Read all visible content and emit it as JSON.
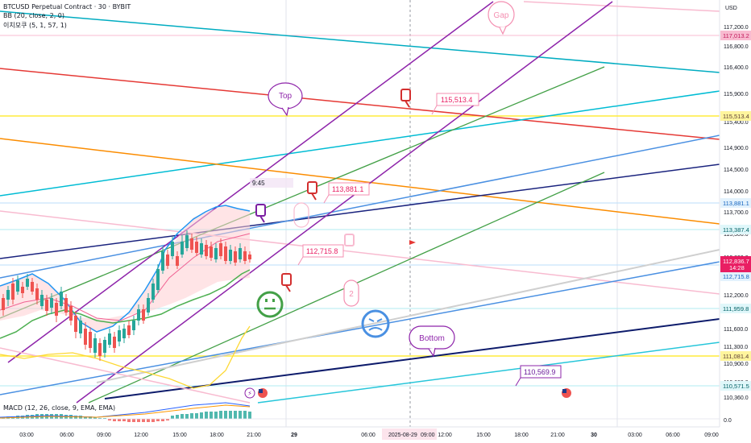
{
  "header": {
    "title": "BTCUSD Perpetual Contract · 30 · BYBIT",
    "indicator_bb": "BB (20, close, 2, 0)",
    "indicator_ichimoku": "이치모쿠 (5, 1, 57, 1)",
    "indicator_macd": "MACD (12, 26, close, 9, EMA, EMA)"
  },
  "axis": {
    "currency": "USD",
    "ticks": [
      "117,200.0",
      "116,800.0",
      "116,400.0",
      "115,900.0",
      "115,400.0",
      "114,900.0",
      "114,500.0",
      "114,000.0",
      "113,700.0",
      "113,300.0",
      "112,800.0",
      "112,200.0",
      "111,600.0",
      "111,300.0",
      "110,900.0",
      "110,660.0",
      "110,360.0",
      "0.0"
    ],
    "highlighted": [
      {
        "label": "117,013.2",
        "color": "#f8bbd0",
        "text_color": "#c2185b"
      },
      {
        "label": "115,513.4",
        "color": "#fff59d",
        "text_color": "#5d4037"
      },
      {
        "label": "113,881.1",
        "color": "#e3f2fd",
        "text_color": "#1565c0"
      },
      {
        "label": "113,387.4",
        "color": "#e0f7fa",
        "text_color": "#006064"
      },
      {
        "label": "112,715.8",
        "color": "#e3f2fd",
        "text_color": "#1565c0"
      },
      {
        "label": "111,959.8",
        "color": "#e0f7fa",
        "text_color": "#006064"
      },
      {
        "label": "111,081.4",
        "color": "#fff59d",
        "text_color": "#5d4037"
      },
      {
        "label": "110,571.5",
        "color": "#e0f7fa",
        "text_color": "#006064"
      }
    ],
    "current_price": "112,836.7",
    "countdown": "14:28",
    "current_color": "#e91e63"
  },
  "time_axis": {
    "labels": [
      "03:00",
      "06:00",
      "09:00",
      "12:00",
      "15:00",
      "18:00",
      "21:00",
      "29",
      "06:00",
      "09:00",
      "12:00",
      "15:00",
      "18:00",
      "21:00",
      "30",
      "03:00",
      "06:00",
      "09:00"
    ],
    "highlighted_date": "2025-08-29",
    "highlighted_time": "09:00"
  },
  "annotations": {
    "gap": "Gap",
    "top": "Top",
    "bottom": "Bottom",
    "num_two": "2",
    "label_115513": "115,513.4",
    "label_113881": "113,881.1",
    "label_112715": "112,715.8",
    "label_110569": "110,569.9",
    "time_tag": "9:45"
  },
  "colors": {
    "bull": "#26a69a",
    "bear": "#ef5350",
    "bb_upper": "#2196f3",
    "bb_lower": "#4caf50",
    "gap_pink": "#f48fb1",
    "macd_bar": "#26a69a"
  }
}
